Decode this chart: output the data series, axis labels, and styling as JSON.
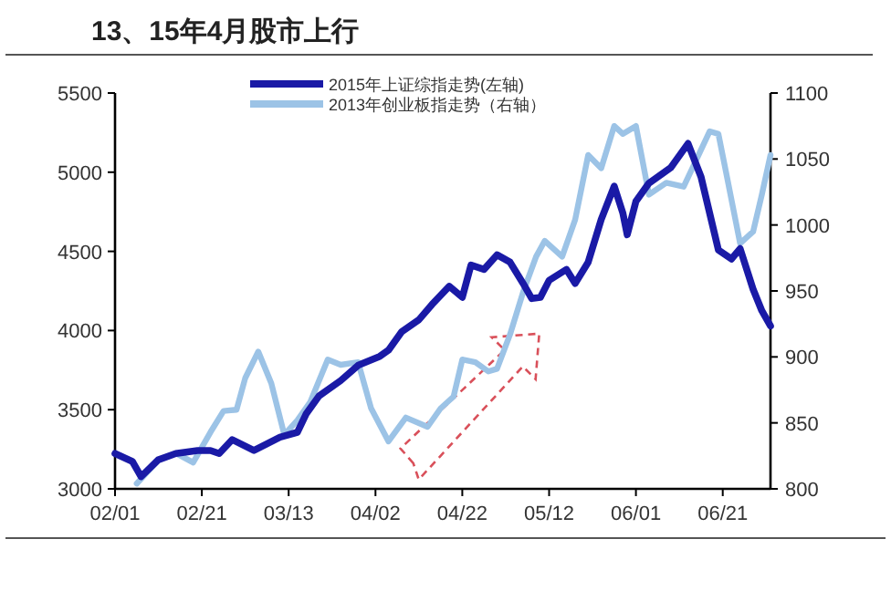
{
  "chart_data": {
    "type": "line",
    "title": "13、15年4月股市上行",
    "xlim": [
      "--02-01",
      "--07-02"
    ],
    "xticks": [
      {
        "value": "--02-01",
        "label": "02/01"
      },
      {
        "value": "--02-21",
        "label": "02/21"
      },
      {
        "value": "--03-13",
        "label": "03/13"
      },
      {
        "value": "--04-02",
        "label": "04/02"
      },
      {
        "value": "--04-22",
        "label": "04/22"
      },
      {
        "value": "--05-12",
        "label": "05/12"
      },
      {
        "value": "--06-01",
        "label": "06/01"
      },
      {
        "value": "--06-21",
        "label": "06/21"
      }
    ],
    "ylim": [
      3000,
      5500
    ],
    "yticks": [
      3000,
      3500,
      4000,
      4500,
      5000,
      5500
    ],
    "y2lim": [
      800,
      1100
    ],
    "y2ticks": [
      800,
      850,
      900,
      950,
      1000,
      1050,
      1100
    ],
    "legend": "top",
    "series": [
      {
        "name": "2013年创业板指走势（右轴）",
        "color": "#9cc3e6",
        "axis": "y2",
        "x": [
          "--02-06",
          "--02-11",
          "--02-15",
          "--02-19",
          "--02-23",
          "--02-26",
          "--03-01",
          "--03-03",
          "--03-06",
          "--03-09",
          "--03-12",
          "--03-15",
          "--03-18",
          "--03-22",
          "--03-25",
          "--03-29",
          "--04-01",
          "--04-05",
          "--04-09",
          "--04-14",
          "--04-17",
          "--04-20",
          "--04-22",
          "--04-25",
          "--04-28",
          "--04-30",
          "--05-03",
          "--05-06",
          "--05-09",
          "--05-11",
          "--05-15",
          "--05-18",
          "--05-21",
          "--05-24",
          "--05-27",
          "--05-29",
          "--06-01",
          "--06-04",
          "--06-08",
          "--06-12",
          "--06-15",
          "--06-18",
          "--06-20",
          "--06-22",
          "--06-25",
          "--06-28",
          "--06-30",
          "--07-02"
        ],
        "values": [
          804,
          822,
          827,
          820,
          843,
          859,
          860,
          884,
          904,
          880,
          841,
          852,
          866,
          898,
          894,
          896,
          861,
          836,
          854,
          847,
          861,
          870,
          898,
          896,
          889,
          891,
          917,
          949,
          976,
          988,
          976,
          1004,
          1053,
          1043,
          1075,
          1069,
          1075,
          1023,
          1032,
          1029,
          1050,
          1071,
          1069,
          1036,
          986,
          995,
          1023,
          1053
        ]
      },
      {
        "name": "2015年上证综指走势(左轴)",
        "color": "#1a1aa6",
        "x": [
          "--02-01",
          "--02-05",
          "--02-07",
          "--02-11",
          "--02-15",
          "--02-20",
          "--02-23",
          "--02-25",
          "--02-28",
          "--03-05",
          "--03-11",
          "--03-15",
          "--03-17",
          "--03-20",
          "--03-25",
          "--03-29",
          "--04-03",
          "--04-05",
          "--04-08",
          "--04-12",
          "--04-15",
          "--04-19",
          "--04-22",
          "--04-24",
          "--04-27",
          "--04-30",
          "--05-03",
          "--05-06",
          "--05-08",
          "--05-10",
          "--05-12",
          "--05-16",
          "--05-18",
          "--05-21",
          "--05-24",
          "--05-27",
          "--05-29",
          "--05-30",
          "--06-01",
          "--06-04",
          "--06-09",
          "--06-13",
          "--06-16",
          "--06-20",
          "--06-23",
          "--06-25",
          "--06-28",
          "--06-30",
          "--07-02"
        ],
        "values": [
          3223,
          3173,
          3077,
          3184,
          3223,
          3242,
          3242,
          3223,
          3311,
          3242,
          3326,
          3357,
          3472,
          3587,
          3684,
          3780,
          3837,
          3876,
          3991,
          4068,
          4164,
          4279,
          4210,
          4413,
          4386,
          4478,
          4432,
          4298,
          4202,
          4210,
          4317,
          4386,
          4298,
          4432,
          4701,
          4912,
          4740,
          4605,
          4816,
          4931,
          5028,
          5181,
          4970,
          4509,
          4452,
          4517,
          4260,
          4125,
          4029
        ]
      }
    ]
  }
}
